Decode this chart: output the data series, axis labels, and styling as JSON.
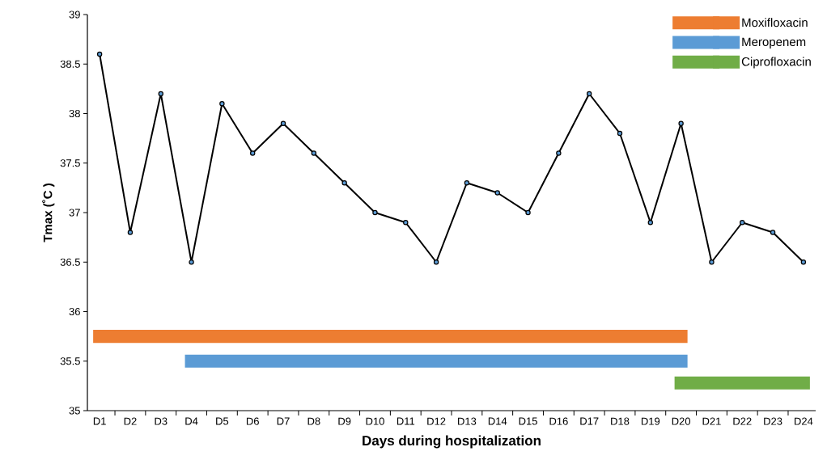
{
  "chart_data": {
    "type": "line",
    "xlabel": "Days  during hospitalization",
    "ylabel": "Tmax (˚C )",
    "categories": [
      "D1",
      "D2",
      "D3",
      "D4",
      "D5",
      "D6",
      "D7",
      "D8",
      "D9",
      "D10",
      "D11",
      "D12",
      "D13",
      "D14",
      "D15",
      "D16",
      "D17",
      "D18",
      "D19",
      "D20",
      "D21",
      "D22",
      "D23",
      "D24"
    ],
    "ylim": [
      35,
      39
    ],
    "yticks": [
      35,
      35.5,
      36,
      36.5,
      37,
      37.5,
      38,
      38.5,
      39
    ],
    "legend": "top right",
    "grid": false,
    "marker": "circle",
    "series": [
      {
        "color": "#000000",
        "values": [
          38.6,
          36.8,
          38.2,
          36.5,
          38.1,
          37.6,
          37.9,
          37.6,
          37.3,
          37.0,
          36.9,
          36.5,
          37.3,
          37.2,
          37.0,
          37.6,
          38.2,
          37.8,
          36.9,
          37.9,
          36.5,
          36.9,
          36.8,
          36.5
        ]
      },
      {
        "name": "Moxifloxacin",
        "color": "#ed7d31",
        "marker": "none",
        "values": [
          35.75,
          35.75,
          35.75,
          35.75,
          35.75,
          35.75,
          35.75,
          35.75,
          35.75,
          35.75,
          35.75,
          35.75,
          35.75,
          35.75,
          35.75,
          35.75,
          35.75,
          35.75,
          35.75,
          35.75,
          null,
          null,
          null,
          null
        ]
      },
      {
        "name": "Meropenem",
        "color": "#5b9bd5",
        "marker": "none",
        "values": [
          null,
          null,
          null,
          35.5,
          35.5,
          35.5,
          35.5,
          35.5,
          35.5,
          35.5,
          35.5,
          35.5,
          35.5,
          35.5,
          35.5,
          35.5,
          35.5,
          35.5,
          35.5,
          35.5,
          null,
          null,
          null,
          null
        ]
      },
      {
        "name": "Ciprofloxacin",
        "color": "#70ad47",
        "marker": "none",
        "values": [
          null,
          null,
          null,
          null,
          null,
          null,
          null,
          null,
          null,
          null,
          null,
          null,
          null,
          null,
          null,
          null,
          null,
          null,
          null,
          35.28,
          35.28,
          35.28,
          35.28,
          35.28
        ]
      }
    ]
  }
}
